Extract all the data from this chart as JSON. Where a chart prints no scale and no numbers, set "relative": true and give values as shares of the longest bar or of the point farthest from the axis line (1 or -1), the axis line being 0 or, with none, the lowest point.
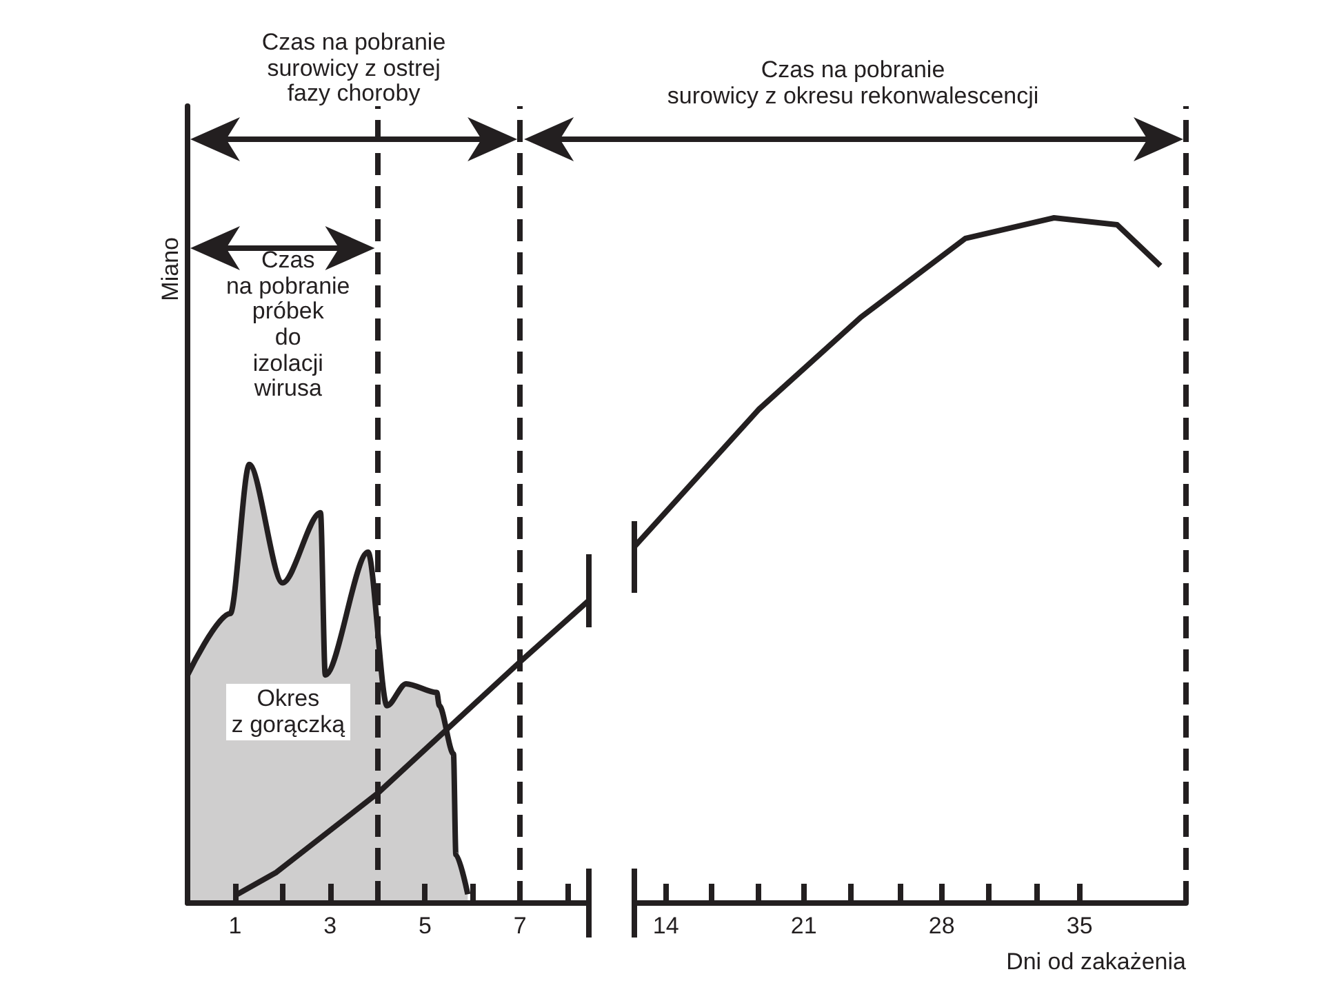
{
  "chart_data": [
    {
      "type": "area",
      "relative": true,
      "ylabel": "Miano",
      "tick_labels": "x",
      "xlim": [
        0,
        8.45
      ],
      "xticks": [
        1,
        {
          "value": 2,
          "label": null
        },
        3,
        {
          "value": 4,
          "label": null
        },
        5,
        {
          "value": 6,
          "label": null
        },
        7,
        {
          "value": 8,
          "label": null
        }
      ],
      "series": [
        {
          "color": "#231f20",
          "x": [
            0,
            0.9,
            1.3,
            2.0,
            2.8,
            2.9,
            3.8,
            4.2,
            4.6,
            5.25,
            5.3,
            5.6,
            5.65,
            5.9
          ],
          "values": [
            0.52,
            0.66,
            1,
            0.73,
            0.89,
            0.52,
            0.8,
            0.45,
            0.5,
            0.48,
            0.45,
            0.34,
            0.11,
            0.02
          ]
        },
        {
          "type": "line",
          "color": "#231f20",
          "x": [
            1.05,
            1.87,
            4.0,
            7.0,
            8.45
          ],
          "values": [
            0.02,
            0.07,
            0.25,
            0.55,
            0.69
          ]
        }
      ],
      "ref_lines": [
        {
          "axis": "x",
          "value": 4,
          "line_style": "dashed",
          "color": "#231f20"
        },
        {
          "axis": "x",
          "value": 7,
          "line_style": "dashed",
          "color": "#231f20"
        }
      ],
      "annotations": [
        "Czas na pobranie\nsurowicy z ostrej\nfazy choroby",
        "Czas\nna pobranie\npróbek\ndo\nizolacji\nwirusa",
        "Okres\nz gorączką"
      ]
    },
    {
      "type": "line",
      "relative": true,
      "xlabel": "Dni od zakażenia",
      "tick_labels": "x",
      "xlim": [
        12.4,
        40.4
      ],
      "xticks": [
        14,
        {
          "value": 16.3,
          "label": null
        },
        {
          "value": 18.7,
          "label": null
        },
        21,
        {
          "value": 23.4,
          "label": null
        },
        {
          "value": 25.9,
          "label": null
        },
        28,
        {
          "value": 30.4,
          "label": null
        },
        {
          "value": 32.8,
          "label": null
        },
        35
      ],
      "series": [
        {
          "color": "#231f20",
          "x": [
            12.4,
            18.7,
            23.9,
            29.2,
            33.7,
            36.9,
            39.1
          ],
          "values": [
            0.52,
            0.72,
            0.855,
            0.97,
            1.0,
            0.99,
            0.93
          ]
        }
      ],
      "ref_lines": [
        {
          "axis": "x",
          "value": 40.4,
          "line_style": "dashed",
          "color": "#231f20"
        }
      ],
      "annotations": [
        "Czas na pobranie\nsurowicy z okresu rekonwalescencji"
      ]
    }
  ]
}
